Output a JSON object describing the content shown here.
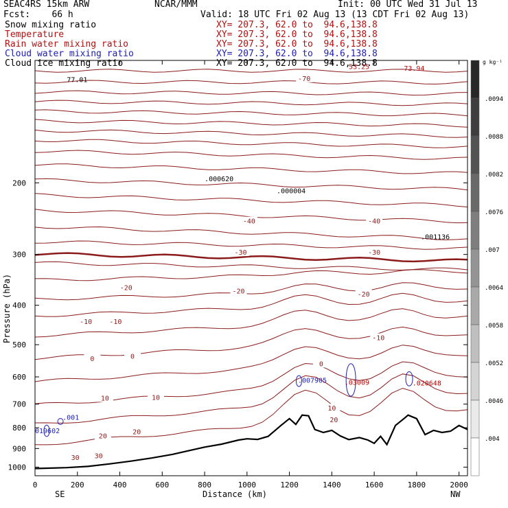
{
  "header": {
    "title": "SEAC4RS 15km ARW",
    "center": "NCAR/MMM",
    "init": "Init: 00 UTC Wed 31 Jul 13",
    "fcst": "Fcst:    66 h",
    "valid": "Valid: 18 UTC Fri 02 Aug 13 (13 CDT Fri 02 Aug 13)",
    "fields": [
      {
        "name": "Snow mixing ratio",
        "xy": "XY= 207.3, 62.0 to  94.6,138.8",
        "color": "#000000"
      },
      {
        "name": "Temperature",
        "xy": "XY= 207.3, 62.0 to  94.6,138.8",
        "color": "#b01010"
      },
      {
        "name": "Rain water mixing ratio",
        "xy": "XY= 207.3, 62.0 to  94.6,138.8",
        "color": "#c00000"
      },
      {
        "name": "Cloud water mixing ratio",
        "xy": "XY= 207.3, 62.0 to  94.6,138.8",
        "color": "#2020b0"
      },
      {
        "name": "Cloud ice mixing ratio",
        "xy": "XY= 207.3, 62.0 to  94.6,138.8",
        "color": "#000000"
      }
    ]
  },
  "chart_data": {
    "type": "contour-cross-section",
    "xlabel": "Distance (km)",
    "ylabel": "Pressure (hPa)",
    "xlim": [
      0,
      2040
    ],
    "ylim": [
      1050,
      100
    ],
    "y_scale": "log",
    "x_ticks": [
      0,
      200,
      400,
      600,
      800,
      1000,
      1200,
      1400,
      1600,
      1800,
      2000
    ],
    "y_ticks": [
      200,
      300,
      400,
      500,
      600,
      700,
      800,
      900,
      1000
    ],
    "x_end_labels": {
      "left": "SE",
      "right": "NW"
    },
    "temperature_contour_labels": [
      {
        "label": "-70",
        "x": 1270,
        "p": 111
      },
      {
        "label": "-40",
        "x": 1010,
        "p": 249
      },
      {
        "label": "-40",
        "x": 1600,
        "p": 249
      },
      {
        "label": "-30",
        "x": 970,
        "p": 297
      },
      {
        "label": "-30",
        "x": 1600,
        "p": 297
      },
      {
        "label": "-20",
        "x": 430,
        "p": 363
      },
      {
        "label": "-20",
        "x": 960,
        "p": 370
      },
      {
        "label": "-20",
        "x": 1550,
        "p": 376
      },
      {
        "label": "-10",
        "x": 240,
        "p": 440
      },
      {
        "label": "-10",
        "x": 380,
        "p": 440
      },
      {
        "label": "-10",
        "x": 1620,
        "p": 482
      },
      {
        "label": "0",
        "x": 270,
        "p": 542
      },
      {
        "label": "0",
        "x": 460,
        "p": 535
      },
      {
        "label": "0",
        "x": 1350,
        "p": 558
      },
      {
        "label": "10",
        "x": 330,
        "p": 678
      },
      {
        "label": "10",
        "x": 570,
        "p": 676
      },
      {
        "label": "10",
        "x": 1400,
        "p": 718
      },
      {
        "label": "20",
        "x": 320,
        "p": 840
      },
      {
        "label": "20",
        "x": 480,
        "p": 820
      },
      {
        "label": "20",
        "x": 1410,
        "p": 767
      },
      {
        "label": "30",
        "x": 190,
        "p": 950
      },
      {
        "label": "30",
        "x": 300,
        "p": 940
      }
    ],
    "extrema_labels": [
      {
        "label": ".000620",
        "x": 800,
        "p": 198,
        "color": "#000000"
      },
      {
        "label": ".000004",
        "x": 1140,
        "p": 212,
        "color": "#000000"
      },
      {
        "label": ".001136",
        "x": 1820,
        "p": 275,
        "color": "#000000"
      },
      {
        "label": ".007905",
        "x": 1240,
        "p": 620,
        "color": "#2020b0"
      },
      {
        "label": ".03009",
        "x": 1460,
        "p": 628,
        "color": "#c00000"
      },
      {
        "label": ".020648",
        "x": 1780,
        "p": 630,
        "color": "#c00000"
      },
      {
        "label": ".001",
        "x": 130,
        "p": 765,
        "color": "#2020b0"
      },
      {
        "label": "019602",
        "x": 0,
        "p": 825,
        "color": "#2020b0"
      },
      {
        "label": "77.01",
        "x": 150,
        "p": 113,
        "color": "#000000"
      },
      {
        "label": "73.94",
        "x": 1740,
        "p": 106,
        "color": "#b01010"
      },
      {
        "label": "53.25",
        "x": 1480,
        "p": 105,
        "color": "#b01010"
      }
    ],
    "colorbar": {
      "unit": "g kg⁻¹",
      "labels": [
        ".0094",
        ".0088",
        ".0082",
        ".0076",
        ".007",
        ".0064",
        ".0058",
        ".0052",
        ".0046",
        ".004"
      ]
    },
    "terrain_surface_pressure": [
      [
        0,
        1008
      ],
      [
        60,
        1006
      ],
      [
        150,
        1003
      ],
      [
        250,
        996
      ],
      [
        350,
        982
      ],
      [
        450,
        967
      ],
      [
        550,
        950
      ],
      [
        650,
        930
      ],
      [
        730,
        910
      ],
      [
        800,
        893
      ],
      [
        880,
        878
      ],
      [
        960,
        858
      ],
      [
        1000,
        852
      ],
      [
        1050,
        855
      ],
      [
        1100,
        840
      ],
      [
        1160,
        790
      ],
      [
        1200,
        760
      ],
      [
        1230,
        785
      ],
      [
        1260,
        745
      ],
      [
        1290,
        748
      ],
      [
        1320,
        808
      ],
      [
        1360,
        822
      ],
      [
        1400,
        812
      ],
      [
        1440,
        838
      ],
      [
        1480,
        856
      ],
      [
        1530,
        846
      ],
      [
        1570,
        858
      ],
      [
        1600,
        874
      ],
      [
        1630,
        840
      ],
      [
        1660,
        880
      ],
      [
        1700,
        790
      ],
      [
        1740,
        760
      ],
      [
        1760,
        745
      ],
      [
        1800,
        760
      ],
      [
        1840,
        832
      ],
      [
        1880,
        812
      ],
      [
        1920,
        822
      ],
      [
        1960,
        816
      ],
      [
        2000,
        790
      ],
      [
        2040,
        808
      ]
    ]
  }
}
